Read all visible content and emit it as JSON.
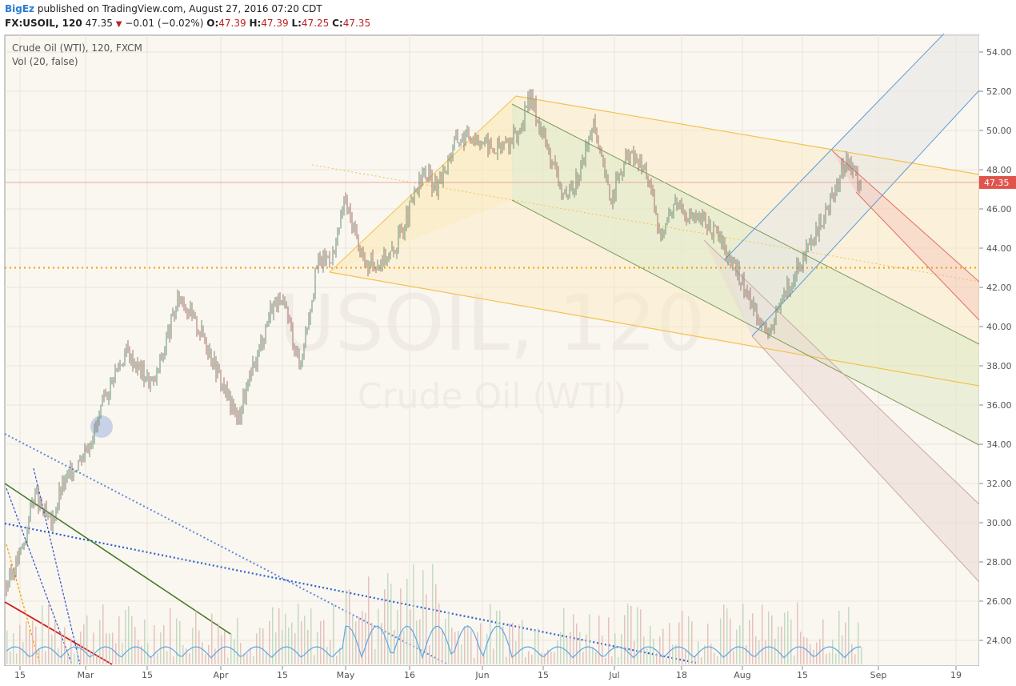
{
  "header": {
    "author": "BigEz",
    "publish_text": "published on TradingView.com, August 27, 2016 07:20 CDT",
    "symbol": "FX:USOIL, 120",
    "last": "47.35",
    "change_arrow": "▼",
    "change": "−0.01 (−0.02%)",
    "open_label": "O:",
    "open": "47.39",
    "high_label": "H:",
    "high": "47.39",
    "low_label": "L:",
    "low": "47.25",
    "close_label": "C:",
    "close": "47.35"
  },
  "legend": {
    "title": "Crude Oil (WTI), 120, FXCM",
    "volume": "Vol (20, false)"
  },
  "watermark": {
    "symbol": "USOIL, 120",
    "name": "Crude Oil (WTI)"
  },
  "price_badge": "47.35",
  "chart_data": {
    "type": "line",
    "colors": {
      "candle_up": "#6b8f73",
      "candle_down": "#a5736b",
      "price_line": "#e8a9a0",
      "badge": "#e0544d",
      "support": "#f0a000"
    },
    "x_ticks": [
      "15",
      "Mar",
      "15",
      "Apr",
      "15",
      "May",
      "16",
      "Jun",
      "15",
      "Jul",
      "18",
      "Aug",
      "15",
      "Sep",
      "19"
    ],
    "y_ticks": [
      "24.00",
      "26.00",
      "28.00",
      "30.00",
      "32.00",
      "34.00",
      "36.00",
      "38.00",
      "40.00",
      "42.00",
      "44.00",
      "46.00",
      "48.00",
      "50.00",
      "52.00",
      "54.00"
    ],
    "ylim": [
      23,
      55
    ],
    "series": [
      {
        "values": [
          [
            "Feb 9",
            27.0
          ],
          [
            "Feb 11",
            26.2
          ],
          [
            "Feb 16",
            29.0
          ],
          [
            "Feb 18",
            31.5
          ],
          [
            "Feb 22",
            29.8
          ],
          [
            "Feb 24",
            31.6
          ],
          [
            "Feb 29",
            33.5
          ],
          [
            "Mar 3",
            34.8
          ],
          [
            "Mar 7",
            37.5
          ],
          [
            "Mar 10",
            38.7
          ],
          [
            "Mar 16",
            37.0
          ],
          [
            "Mar 22",
            41.6
          ],
          [
            "Mar 28",
            39.2
          ],
          [
            "Apr 1",
            36.8
          ],
          [
            "Apr 4",
            35.3
          ],
          [
            "Apr 8",
            38.2
          ],
          [
            "Apr 12",
            41.3
          ],
          [
            "Apr 15",
            40.8
          ],
          [
            "Apr 18",
            38.0
          ],
          [
            "Apr 22",
            43.2
          ],
          [
            "Apr 26",
            43.8
          ],
          [
            "Apr 28",
            46.5
          ],
          [
            "May 3",
            43.0
          ],
          [
            "May 9",
            43.8
          ],
          [
            "May 12",
            45.5
          ],
          [
            "May 16",
            47.9
          ],
          [
            "May 19",
            47.0
          ],
          [
            "May 23",
            49.5
          ],
          [
            "May 27",
            49.8
          ],
          [
            "Jun 1",
            49.0
          ],
          [
            "Jun 6",
            49.7
          ],
          [
            "Jun 9",
            51.7
          ],
          [
            "Jun 13",
            49.0
          ],
          [
            "Jun 17",
            46.3
          ],
          [
            "Jun 20",
            47.8
          ],
          [
            "Jun 23",
            50.3
          ],
          [
            "Jun 27",
            46.5
          ],
          [
            "Jul 1",
            48.8
          ],
          [
            "Jul 5",
            48.0
          ],
          [
            "Jul 8",
            44.7
          ],
          [
            "Jul 12",
            46.5
          ],
          [
            "Jul 15",
            45.6
          ],
          [
            "Jul 19",
            45.2
          ],
          [
            "Jul 22",
            44.3
          ],
          [
            "Jul 26",
            42.5
          ],
          [
            "Jul 29",
            41.1
          ],
          [
            "Aug 2",
            39.5
          ],
          [
            "Aug 5",
            41.7
          ],
          [
            "Aug 9",
            43.2
          ],
          [
            "Aug 12",
            44.5
          ],
          [
            "Aug 16",
            46.6
          ],
          [
            "Aug 19",
            48.6
          ],
          [
            "Aug 22",
            47.4
          ],
          [
            "Aug 24",
            46.4
          ],
          [
            "Aug 26",
            47.35
          ]
        ]
      }
    ],
    "reference_level": 43.0,
    "grid": true
  }
}
